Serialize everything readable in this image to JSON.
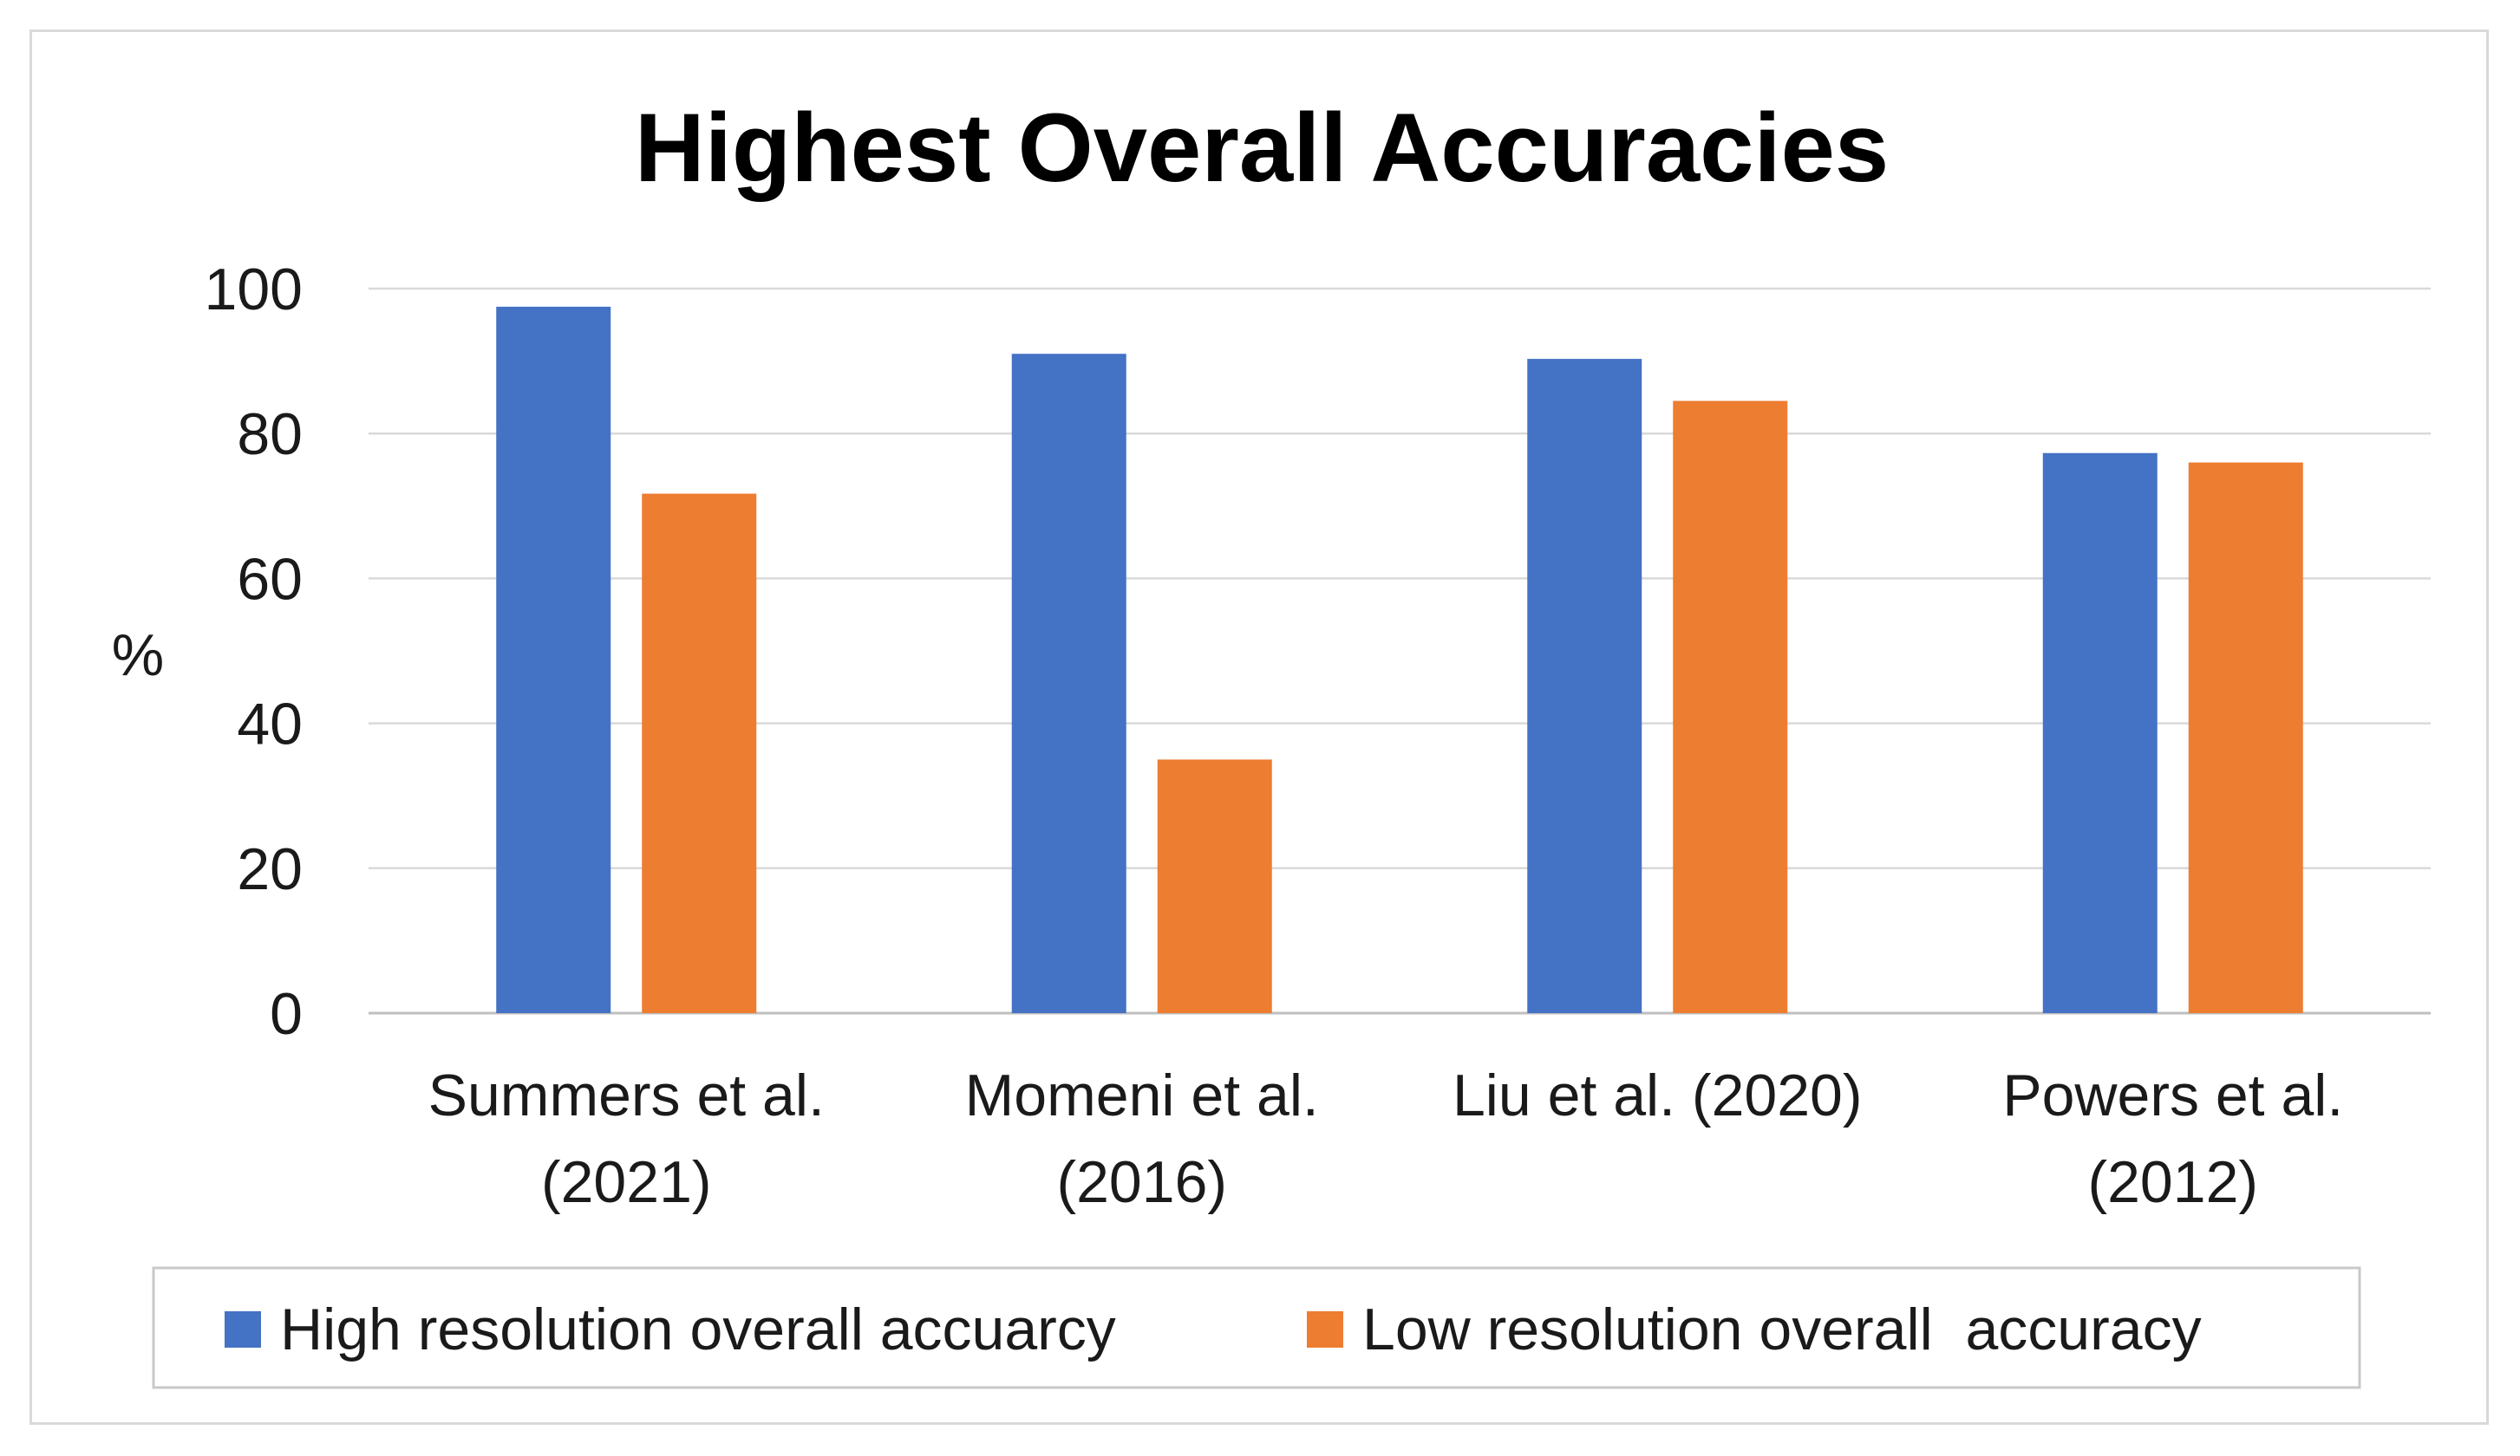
{
  "chart_data": {
    "type": "bar",
    "title": "Highest Overall Accuracies",
    "xlabel": "",
    "ylabel": "%",
    "ylim": [
      0,
      100
    ],
    "yticks": [
      0,
      20,
      40,
      60,
      80,
      100
    ],
    "grid": true,
    "legend_position": "bottom",
    "categories": [
      [
        "Summers et al.",
        "(2021)"
      ],
      [
        "Momeni et al.",
        "(2016)"
      ],
      [
        "Liu et al. (2020)"
      ],
      [
        "Powers et al.",
        "(2012)"
      ]
    ],
    "series": [
      {
        "name": "High resolution overall accuarcy",
        "color": "#4472c4",
        "values": [
          97.5,
          91,
          90.3,
          77.3
        ]
      },
      {
        "name": "Low resolution overall  accuracy",
        "color": "#ed7d31",
        "values": [
          71.7,
          35,
          84.5,
          76
        ]
      }
    ]
  }
}
